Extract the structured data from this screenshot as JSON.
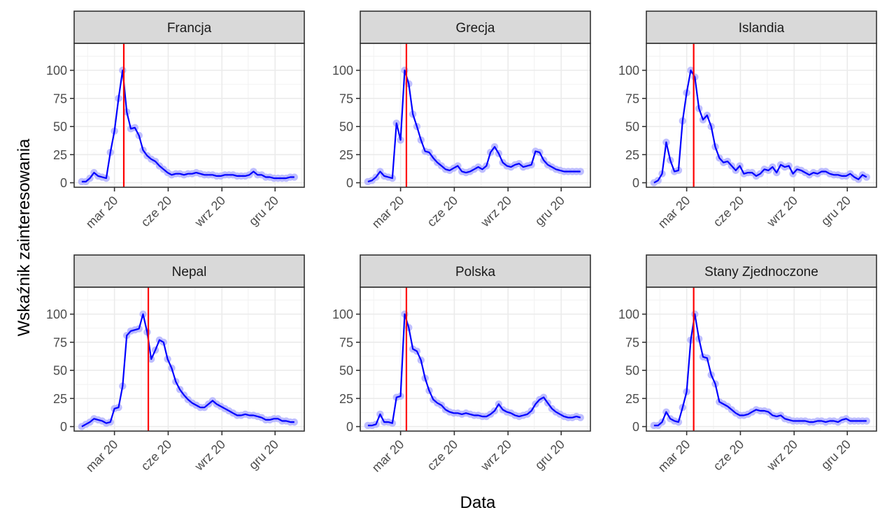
{
  "chart_data": {
    "type": "line",
    "xlabel": "Data",
    "ylabel": "Wskaźnik zainteresowania",
    "ylim": [
      0,
      100
    ],
    "yticks": [
      0,
      25,
      50,
      75,
      100
    ],
    "x_tick_labels": [
      "mar 20",
      "cze 20",
      "wrz 20",
      "gru 20"
    ],
    "x_tick_dates": [
      "2020-03-01",
      "2020-06-01",
      "2020-09-01",
      "2020-12-01"
    ],
    "x_range": [
      "2019-12-23",
      "2021-01-20"
    ],
    "grid": true,
    "facet_layout": "2x3",
    "line_color": "#0000ff",
    "point_color": "#b3b3ff",
    "vline_color": "#ff0000",
    "panels": [
      {
        "title": "Francja",
        "vline_date": "2020-03-17",
        "dates": [
          "2020-01-05",
          "2020-01-12",
          "2020-01-19",
          "2020-01-26",
          "2020-02-02",
          "2020-02-09",
          "2020-02-16",
          "2020-02-23",
          "2020-03-01",
          "2020-03-08",
          "2020-03-15",
          "2020-03-22",
          "2020-03-29",
          "2020-04-05",
          "2020-04-12",
          "2020-04-19",
          "2020-04-26",
          "2020-05-03",
          "2020-05-10",
          "2020-05-17",
          "2020-05-24",
          "2020-05-31",
          "2020-06-07",
          "2020-06-14",
          "2020-06-21",
          "2020-06-28",
          "2020-07-05",
          "2020-07-12",
          "2020-07-19",
          "2020-07-26",
          "2020-08-02",
          "2020-08-09",
          "2020-08-16",
          "2020-08-23",
          "2020-08-30",
          "2020-09-06",
          "2020-09-13",
          "2020-09-20",
          "2020-09-27",
          "2020-10-04",
          "2020-10-11",
          "2020-10-18",
          "2020-10-25",
          "2020-11-01",
          "2020-11-08",
          "2020-11-15",
          "2020-11-22",
          "2020-11-29",
          "2020-12-06",
          "2020-12-13",
          "2020-12-20",
          "2020-12-27",
          "2021-01-03"
        ],
        "values": [
          1,
          1,
          4,
          9,
          6,
          5,
          4,
          27,
          46,
          75,
          100,
          63,
          48,
          49,
          42,
          29,
          24,
          21,
          19,
          15,
          12,
          9,
          7,
          8,
          8,
          7,
          8,
          8,
          9,
          8,
          7,
          7,
          7,
          6,
          6,
          7,
          7,
          7,
          6,
          6,
          6,
          7,
          10,
          7,
          7,
          5,
          5,
          4,
          4,
          4,
          4,
          5,
          5
        ]
      },
      {
        "title": "Grecja",
        "vline_date": "2020-03-11",
        "dates": [
          "2020-01-05",
          "2020-01-12",
          "2020-01-19",
          "2020-01-26",
          "2020-02-02",
          "2020-02-09",
          "2020-02-16",
          "2020-02-23",
          "2020-03-01",
          "2020-03-08",
          "2020-03-15",
          "2020-03-22",
          "2020-03-29",
          "2020-04-05",
          "2020-04-12",
          "2020-04-19",
          "2020-04-26",
          "2020-05-03",
          "2020-05-10",
          "2020-05-17",
          "2020-05-24",
          "2020-05-31",
          "2020-06-07",
          "2020-06-14",
          "2020-06-21",
          "2020-06-28",
          "2020-07-05",
          "2020-07-12",
          "2020-07-19",
          "2020-07-26",
          "2020-08-02",
          "2020-08-09",
          "2020-08-16",
          "2020-08-23",
          "2020-08-30",
          "2020-09-06",
          "2020-09-13",
          "2020-09-20",
          "2020-09-27",
          "2020-10-04",
          "2020-10-11",
          "2020-10-18",
          "2020-10-25",
          "2020-11-01",
          "2020-11-08",
          "2020-11-15",
          "2020-11-22",
          "2020-11-29",
          "2020-12-06",
          "2020-12-13",
          "2020-12-20",
          "2020-12-27",
          "2021-01-03"
        ],
        "values": [
          1,
          2,
          5,
          10,
          6,
          5,
          4,
          53,
          38,
          100,
          88,
          61,
          50,
          38,
          28,
          27,
          22,
          18,
          15,
          12,
          11,
          13,
          15,
          10,
          9,
          10,
          12,
          14,
          12,
          15,
          27,
          32,
          26,
          18,
          15,
          14,
          16,
          17,
          14,
          15,
          16,
          28,
          27,
          20,
          16,
          14,
          12,
          11,
          10,
          10,
          10,
          10,
          10
        ]
      },
      {
        "title": "Islandia",
        "vline_date": "2020-03-13",
        "dates": [
          "2020-01-05",
          "2020-01-12",
          "2020-01-19",
          "2020-01-26",
          "2020-02-02",
          "2020-02-09",
          "2020-02-16",
          "2020-02-23",
          "2020-03-01",
          "2020-03-08",
          "2020-03-15",
          "2020-03-22",
          "2020-03-29",
          "2020-04-05",
          "2020-04-12",
          "2020-04-19",
          "2020-04-26",
          "2020-05-03",
          "2020-05-10",
          "2020-05-17",
          "2020-05-24",
          "2020-05-31",
          "2020-06-07",
          "2020-06-14",
          "2020-06-21",
          "2020-06-28",
          "2020-07-05",
          "2020-07-12",
          "2020-07-19",
          "2020-07-26",
          "2020-08-02",
          "2020-08-09",
          "2020-08-16",
          "2020-08-23",
          "2020-08-30",
          "2020-09-06",
          "2020-09-13",
          "2020-09-20",
          "2020-09-27",
          "2020-10-04",
          "2020-10-11",
          "2020-10-18",
          "2020-10-25",
          "2020-11-01",
          "2020-11-08",
          "2020-11-15",
          "2020-11-22",
          "2020-11-29",
          "2020-12-06",
          "2020-12-13",
          "2020-12-20",
          "2020-12-27",
          "2021-01-03"
        ],
        "values": [
          0,
          2,
          8,
          36,
          20,
          10,
          11,
          55,
          80,
          100,
          94,
          66,
          56,
          60,
          50,
          32,
          22,
          18,
          19,
          15,
          11,
          15,
          8,
          9,
          9,
          6,
          8,
          12,
          11,
          14,
          9,
          16,
          14,
          15,
          8,
          12,
          11,
          9,
          7,
          9,
          8,
          10,
          10,
          8,
          7,
          7,
          6,
          6,
          8,
          5,
          3,
          7,
          5
        ]
      },
      {
        "title": "Nepal",
        "vline_date": "2020-04-28",
        "dates": [
          "2020-01-05",
          "2020-01-12",
          "2020-01-19",
          "2020-01-26",
          "2020-02-02",
          "2020-02-09",
          "2020-02-16",
          "2020-02-23",
          "2020-03-01",
          "2020-03-08",
          "2020-03-15",
          "2020-03-22",
          "2020-03-29",
          "2020-04-05",
          "2020-04-12",
          "2020-04-19",
          "2020-04-26",
          "2020-05-03",
          "2020-05-10",
          "2020-05-17",
          "2020-05-24",
          "2020-05-31",
          "2020-06-07",
          "2020-06-14",
          "2020-06-21",
          "2020-06-28",
          "2020-07-05",
          "2020-07-12",
          "2020-07-19",
          "2020-07-26",
          "2020-08-02",
          "2020-08-09",
          "2020-08-16",
          "2020-08-23",
          "2020-08-30",
          "2020-09-06",
          "2020-09-13",
          "2020-09-20",
          "2020-09-27",
          "2020-10-04",
          "2020-10-11",
          "2020-10-18",
          "2020-10-25",
          "2020-11-01",
          "2020-11-08",
          "2020-11-15",
          "2020-11-22",
          "2020-11-29",
          "2020-12-06",
          "2020-12-13",
          "2020-12-20",
          "2020-12-27",
          "2021-01-03"
        ],
        "values": [
          0,
          2,
          4,
          7,
          6,
          5,
          3,
          4,
          16,
          17,
          36,
          81,
          85,
          86,
          87,
          100,
          84,
          60,
          68,
          77,
          75,
          60,
          52,
          40,
          33,
          28,
          24,
          21,
          19,
          17,
          17,
          20,
          23,
          20,
          18,
          16,
          14,
          12,
          10,
          10,
          11,
          10,
          10,
          9,
          8,
          6,
          6,
          7,
          7,
          5,
          5,
          4,
          4
        ]
      },
      {
        "title": "Polska",
        "vline_date": "2020-03-11",
        "dates": [
          "2020-01-05",
          "2020-01-12",
          "2020-01-19",
          "2020-01-26",
          "2020-02-02",
          "2020-02-09",
          "2020-02-16",
          "2020-02-23",
          "2020-03-01",
          "2020-03-08",
          "2020-03-15",
          "2020-03-22",
          "2020-03-29",
          "2020-04-05",
          "2020-04-12",
          "2020-04-19",
          "2020-04-26",
          "2020-05-03",
          "2020-05-10",
          "2020-05-17",
          "2020-05-24",
          "2020-05-31",
          "2020-06-07",
          "2020-06-14",
          "2020-06-21",
          "2020-06-28",
          "2020-07-05",
          "2020-07-12",
          "2020-07-19",
          "2020-07-26",
          "2020-08-02",
          "2020-08-09",
          "2020-08-16",
          "2020-08-23",
          "2020-08-30",
          "2020-09-06",
          "2020-09-13",
          "2020-09-20",
          "2020-09-27",
          "2020-10-04",
          "2020-10-11",
          "2020-10-18",
          "2020-10-25",
          "2020-11-01",
          "2020-11-08",
          "2020-11-15",
          "2020-11-22",
          "2020-11-29",
          "2020-12-06",
          "2020-12-13",
          "2020-12-20",
          "2020-12-27",
          "2021-01-03"
        ],
        "values": [
          1,
          1,
          2,
          11,
          4,
          4,
          3,
          26,
          27,
          100,
          88,
          69,
          67,
          59,
          43,
          32,
          24,
          21,
          19,
          15,
          13,
          12,
          12,
          11,
          12,
          11,
          10,
          10,
          9,
          9,
          11,
          14,
          20,
          15,
          13,
          12,
          10,
          9,
          10,
          11,
          14,
          20,
          24,
          26,
          21,
          16,
          13,
          11,
          9,
          8,
          8,
          9,
          8
        ]
      },
      {
        "title": "Stany Zjednoczone",
        "vline_date": "2020-03-13",
        "dates": [
          "2020-01-05",
          "2020-01-12",
          "2020-01-19",
          "2020-01-26",
          "2020-02-02",
          "2020-02-09",
          "2020-02-16",
          "2020-02-23",
          "2020-03-01",
          "2020-03-08",
          "2020-03-15",
          "2020-03-22",
          "2020-03-29",
          "2020-04-05",
          "2020-04-12",
          "2020-04-19",
          "2020-04-26",
          "2020-05-03",
          "2020-05-10",
          "2020-05-17",
          "2020-05-24",
          "2020-05-31",
          "2020-06-07",
          "2020-06-14",
          "2020-06-21",
          "2020-06-28",
          "2020-07-05",
          "2020-07-12",
          "2020-07-19",
          "2020-07-26",
          "2020-08-02",
          "2020-08-09",
          "2020-08-16",
          "2020-08-23",
          "2020-08-30",
          "2020-09-06",
          "2020-09-13",
          "2020-09-20",
          "2020-09-27",
          "2020-10-04",
          "2020-10-11",
          "2020-10-18",
          "2020-10-25",
          "2020-11-01",
          "2020-11-08",
          "2020-11-15",
          "2020-11-22",
          "2020-11-29",
          "2020-12-06",
          "2020-12-13",
          "2020-12-20",
          "2020-12-27",
          "2021-01-03"
        ],
        "values": [
          1,
          1,
          4,
          13,
          7,
          5,
          4,
          17,
          31,
          77,
          100,
          78,
          62,
          61,
          46,
          38,
          22,
          20,
          18,
          15,
          12,
          10,
          10,
          11,
          13,
          15,
          14,
          14,
          13,
          10,
          9,
          10,
          7,
          6,
          5,
          5,
          5,
          5,
          4,
          4,
          5,
          5,
          4,
          5,
          5,
          4,
          6,
          7,
          5,
          5,
          5,
          5,
          5
        ]
      }
    ]
  }
}
